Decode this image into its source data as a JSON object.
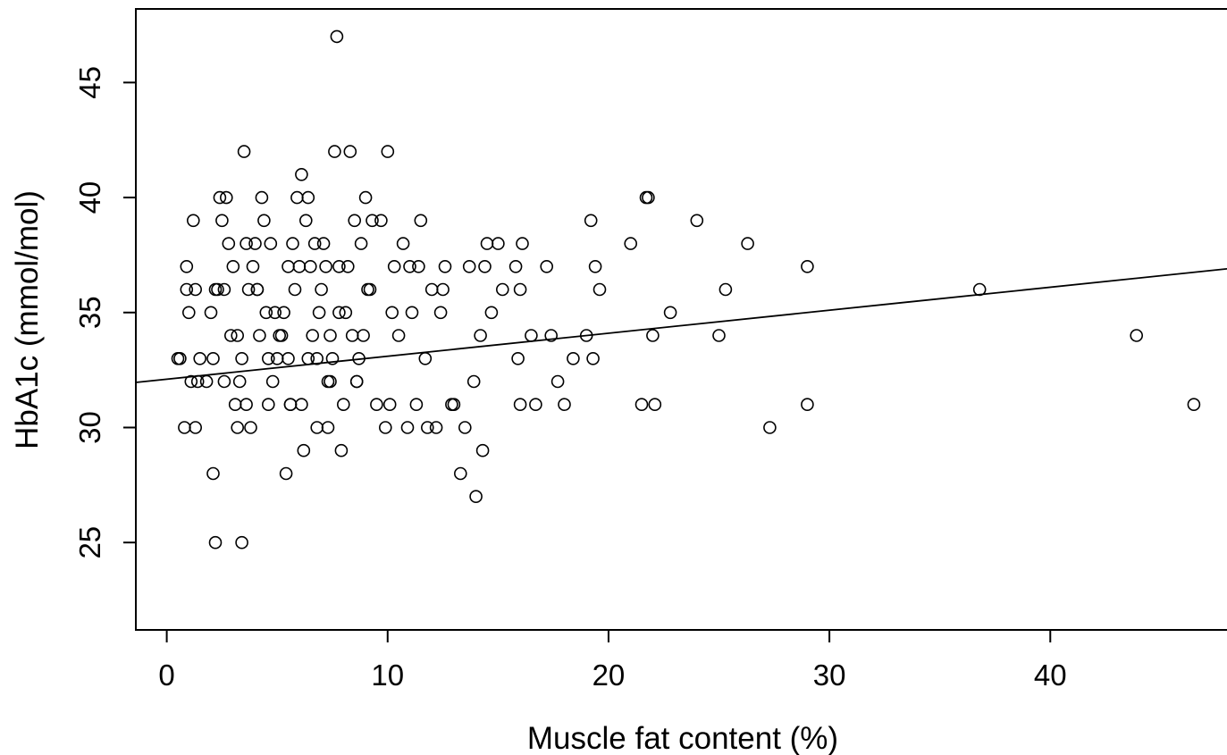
{
  "chart_data": {
    "type": "scatter",
    "title": "",
    "xlabel": "Muscle fat content (%)",
    "ylabel": "HbA1c (mmol/mol)",
    "xlim": [
      -1.4,
      48
    ],
    "ylim": [
      21.2,
      48.2
    ],
    "x_ticks": [
      0,
      10,
      20,
      30,
      40
    ],
    "y_ticks": [
      25,
      30,
      35,
      40,
      45
    ],
    "grid": false,
    "legend": "none",
    "marker": "open-circle",
    "colors": {
      "points": "#000000",
      "axes": "#000000",
      "fit_line": "#000000"
    },
    "fit_line": {
      "slope": 0.1,
      "intercept": 32.1
    },
    "series": [
      {
        "x": [
          0.5,
          0.6,
          0.8,
          0.9,
          1.0,
          1.1,
          1.2,
          1.3,
          1.4,
          1.5,
          1.8,
          2.0,
          2.1,
          2.2,
          2.3,
          2.4,
          2.5,
          2.6,
          2.7,
          2.8,
          2.9,
          3.0,
          3.1,
          3.2,
          3.3,
          3.4,
          3.5,
          3.6,
          3.7,
          3.8,
          3.9,
          4.0,
          4.1,
          4.2,
          4.3,
          4.4,
          4.5,
          4.6,
          4.7,
          4.8,
          4.9,
          5.0,
          5.2,
          5.3,
          5.4,
          5.5,
          5.6,
          5.7,
          5.8,
          5.9,
          6.0,
          6.1,
          6.2,
          6.3,
          6.4,
          6.5,
          6.6,
          6.7,
          6.8,
          6.9,
          7.0,
          7.1,
          7.2,
          7.3,
          7.4,
          7.5,
          7.6,
          7.7,
          7.8,
          7.9,
          8.0,
          8.1,
          8.2,
          8.3,
          8.4,
          8.5,
          8.6,
          8.7,
          8.8,
          8.9,
          9.0,
          9.1,
          9.3,
          9.5,
          9.7,
          9.9,
          10.0,
          10.1,
          10.3,
          10.5,
          10.7,
          10.9,
          11.0,
          11.1,
          11.3,
          11.5,
          11.7,
          11.8,
          12.0,
          12.2,
          12.4,
          12.6,
          12.9,
          13.0,
          13.3,
          13.5,
          13.7,
          14.0,
          14.2,
          14.3,
          14.5,
          14.7,
          15.0,
          15.2,
          15.8,
          16.0,
          16.1,
          16.5,
          16.7,
          17.2,
          17.4,
          17.7,
          18.0,
          18.4,
          19.0,
          19.2,
          19.4,
          19.6,
          21.0,
          21.5,
          21.7,
          21.8,
          22.0,
          22.8,
          24.0,
          25.0,
          25.3,
          26.3,
          27.3,
          29.0,
          29.0,
          36.8,
          43.9,
          46.5,
          0.9,
          1.3,
          2.2,
          2.6,
          3.2,
          3.6,
          4.1,
          4.6,
          5.1,
          5.6,
          6.4,
          6.8,
          7.4,
          7.8,
          8.6,
          9.2,
          10.2,
          11.4,
          12.5,
          14.4,
          15.9,
          16.0,
          19.3,
          22.1,
          2.1,
          3.4,
          5.5,
          6.1,
          7.3,
          13.9
        ],
        "y": [
          33,
          33,
          30,
          37,
          35,
          32,
          39,
          36,
          32,
          33,
          32,
          35,
          28,
          25,
          36,
          40,
          39,
          36,
          40,
          38,
          34,
          37,
          31,
          30,
          32,
          25,
          42,
          38,
          36,
          30,
          37,
          38,
          36,
          34,
          40,
          39,
          35,
          33,
          38,
          32,
          35,
          33,
          34,
          35,
          28,
          37,
          31,
          38,
          36,
          40,
          37,
          41,
          29,
          39,
          40,
          37,
          34,
          38,
          30,
          35,
          36,
          38,
          37,
          32,
          34,
          33,
          42,
          47,
          37,
          29,
          31,
          35,
          37,
          42,
          34,
          39,
          32,
          33,
          38,
          34,
          40,
          36,
          39,
          31,
          39,
          30,
          42,
          31,
          37,
          34,
          38,
          30,
          37,
          35,
          31,
          39,
          33,
          30,
          36,
          30,
          35,
          37,
          31,
          31,
          28,
          30,
          37,
          27,
          34,
          29,
          38,
          35,
          38,
          36,
          37,
          31,
          38,
          34,
          31,
          37,
          34,
          32,
          31,
          33,
          34,
          39,
          37,
          36,
          38,
          31,
          40,
          40,
          34,
          35,
          39,
          34,
          36,
          38,
          30,
          37,
          31,
          36,
          34,
          31,
          36,
          30,
          36,
          32,
          34,
          31,
          36,
          31,
          34,
          31,
          33,
          33,
          32,
          35,
          32,
          36,
          35,
          37,
          36,
          37,
          33,
          36,
          33,
          31,
          33,
          33,
          33,
          31,
          30,
          32
        ]
      }
    ]
  }
}
